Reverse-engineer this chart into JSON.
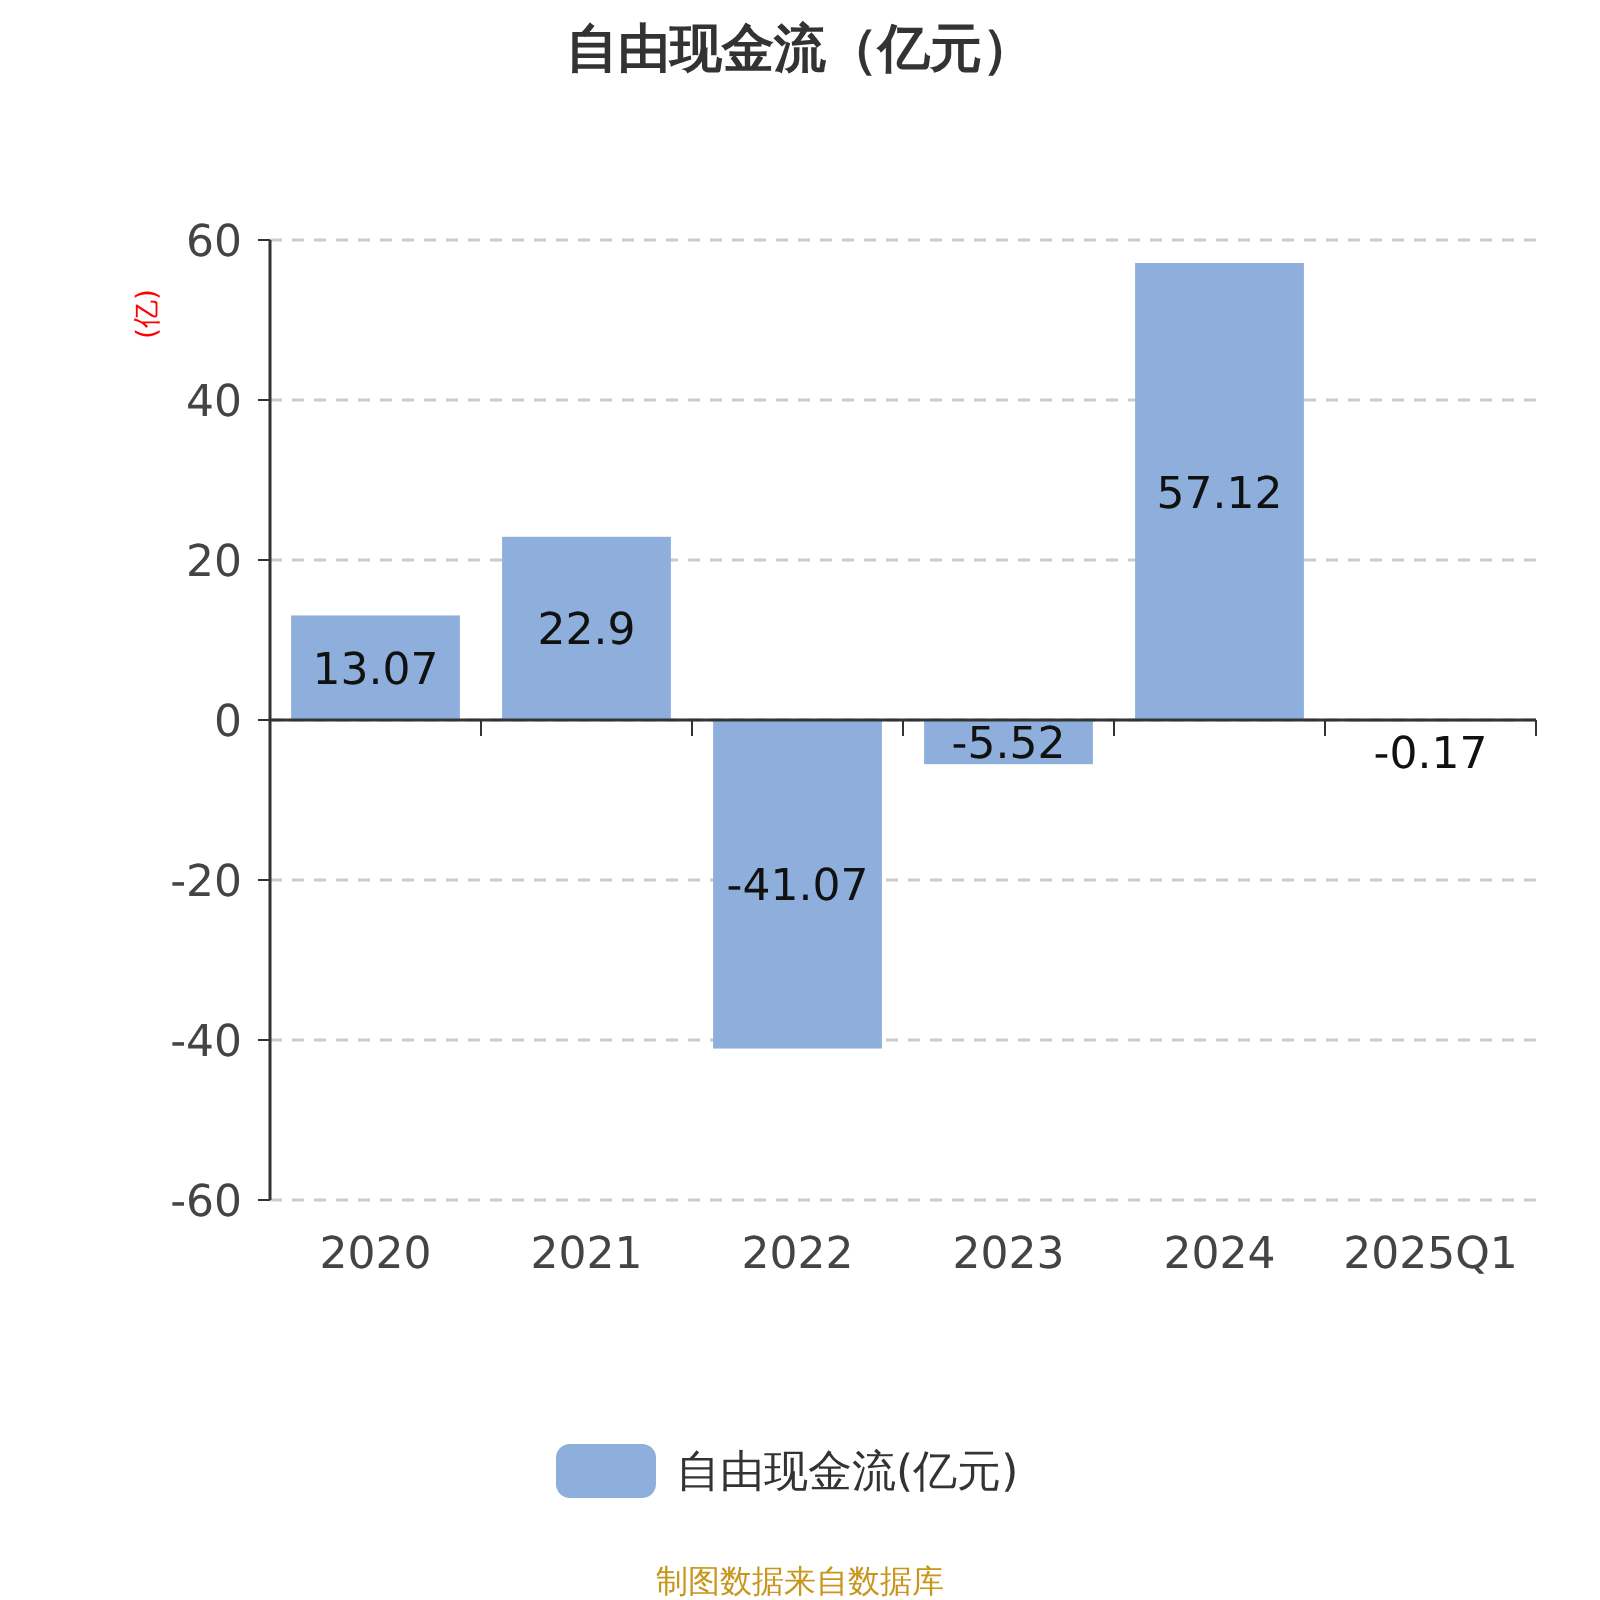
{
  "chart_data": {
    "type": "bar",
    "title": "自由现金流（亿元）",
    "ylabel": "(亿)",
    "categories": [
      "2020",
      "2021",
      "2022",
      "2023",
      "2024",
      "2025Q1"
    ],
    "series": [
      {
        "name": "自由现金流(亿元)",
        "color": "#8eaedb",
        "values": [
          13.07,
          22.9,
          -41.07,
          -5.52,
          57.12,
          -0.17
        ]
      }
    ],
    "ylim": [
      -60,
      60
    ],
    "yticks": [
      -60,
      -40,
      -20,
      0,
      20,
      40,
      60
    ],
    "grid": "y",
    "legend": "bottom",
    "data_labels": true,
    "annotations": [
      "制图数据来自数据库"
    ]
  }
}
